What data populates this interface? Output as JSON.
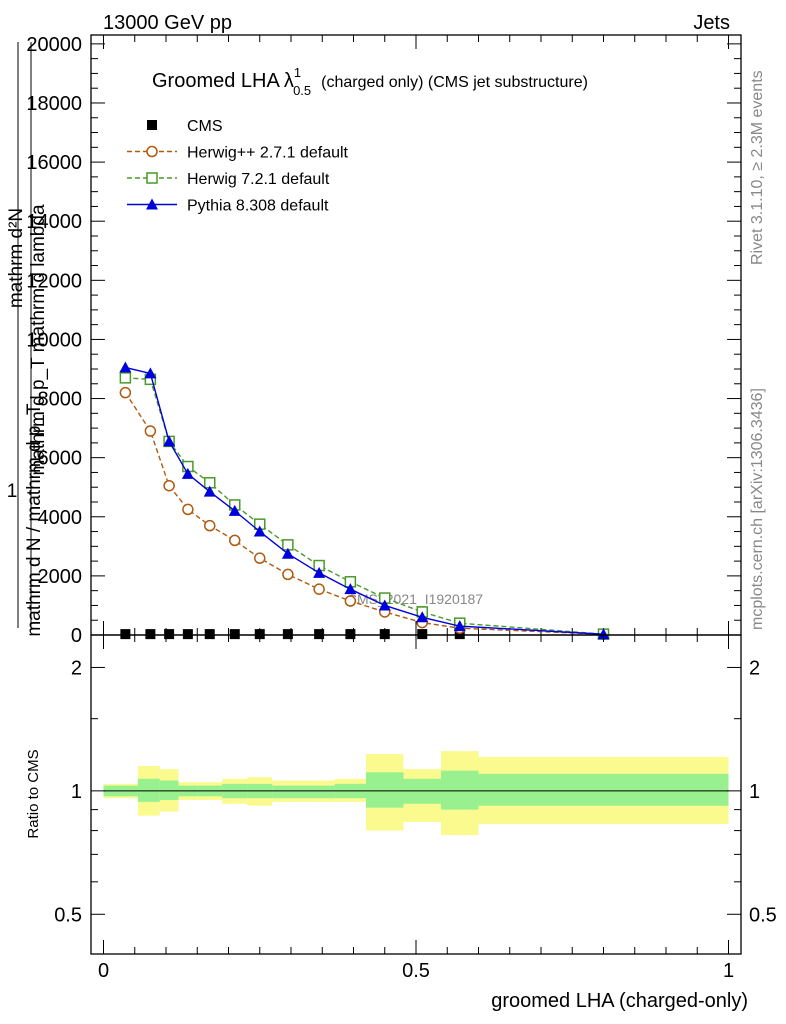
{
  "header": {
    "left": "13000 GeV pp",
    "right": "Jets"
  },
  "side": {
    "rivet": "Rivet 3.1.10, ≥ 2.3M events",
    "mcplots": "mcplots.cern.ch [arXiv:1306.3436]"
  },
  "chart_data": [
    {
      "type": "line",
      "title_main": "Groomed LHA",
      "title_symbol": "λ",
      "title_sup": "1",
      "title_sub": "0.5",
      "title_rest": "(charged only) (CMS jet substructure)",
      "watermark": "CMS_2021_I1920187",
      "ylabel_top": "mathrm d²N",
      "ylabel_one": "1",
      "ylabel_bottom": "mathrm d p_T mathrm d lambda",
      "ylabel_norm": "mathrm d N / mathrm d p_T",
      "xlim": [
        -0.02,
        1.02
      ],
      "ylim": [
        0,
        20300
      ],
      "yticks": [
        0,
        2000,
        4000,
        6000,
        8000,
        10000,
        12000,
        14000,
        16000,
        18000,
        20000
      ],
      "ytick_labels": [
        "0",
        "2000",
        "4000",
        "6000",
        "8000",
        "10000",
        "12000",
        "14000",
        "16000",
        "18000",
        "20000"
      ],
      "x": [
        0.035,
        0.075,
        0.105,
        0.135,
        0.17,
        0.21,
        0.25,
        0.295,
        0.345,
        0.395,
        0.45,
        0.51,
        0.57,
        0.8
      ],
      "series": [
        {
          "name": "CMS",
          "marker": "square-filled",
          "color": "#000000",
          "values": [
            30,
            30,
            30,
            30,
            30,
            30,
            30,
            30,
            30,
            30,
            30,
            30,
            30,
            30
          ]
        },
        {
          "name": "Herwig++ 2.7.1 default",
          "marker": "circle-open",
          "color": "#b05a10",
          "dash": true,
          "values": [
            8200,
            6900,
            5050,
            4250,
            3700,
            3200,
            2600,
            2050,
            1550,
            1150,
            780,
            420,
            230,
            25
          ]
        },
        {
          "name": "Herwig 7.2.1 default",
          "marker": "square-open",
          "color": "#4a9a2a",
          "dash": true,
          "values": [
            8700,
            8650,
            6550,
            5700,
            5150,
            4400,
            3750,
            3050,
            2350,
            1800,
            1250,
            780,
            400,
            30
          ]
        },
        {
          "name": "Pythia 8.308 default",
          "marker": "triangle-filled",
          "color": "#0000dd",
          "dash": false,
          "values": [
            9050,
            8850,
            6550,
            5450,
            4850,
            4200,
            3500,
            2750,
            2100,
            1550,
            1000,
            600,
            300,
            25
          ]
        }
      ]
    },
    {
      "type": "area",
      "ylabel": "Ratio to CMS",
      "xlabel": "groomed LHA (charged-only)",
      "xlim": [
        -0.02,
        1.02
      ],
      "ylim": [
        0.4,
        2.4
      ],
      "log_y": true,
      "yticks": [
        0.5,
        1,
        2
      ],
      "ytick_labels": [
        "0.5",
        "1",
        "2"
      ],
      "xticks": [
        0,
        0.5,
        1
      ],
      "xtick_labels": [
        "0",
        "0.5",
        "1"
      ],
      "bins": [
        0,
        0.055,
        0.09,
        0.12,
        0.15,
        0.19,
        0.23,
        0.27,
        0.32,
        0.37,
        0.42,
        0.48,
        0.54,
        0.6,
        1.0
      ],
      "stat_band": {
        "lo": [
          0.97,
          0.94,
          0.95,
          0.97,
          0.97,
          0.96,
          0.96,
          0.96,
          0.96,
          0.96,
          0.91,
          0.93,
          0.9,
          0.92
        ],
        "hi": [
          1.03,
          1.07,
          1.06,
          1.03,
          1.03,
          1.04,
          1.04,
          1.03,
          1.03,
          1.04,
          1.11,
          1.07,
          1.12,
          1.1
        ]
      },
      "total_band": {
        "lo": [
          0.96,
          0.87,
          0.89,
          0.95,
          0.95,
          0.93,
          0.92,
          0.94,
          0.94,
          0.94,
          0.8,
          0.84,
          0.78,
          0.83
        ],
        "hi": [
          1.04,
          1.15,
          1.13,
          1.05,
          1.05,
          1.07,
          1.08,
          1.06,
          1.06,
          1.07,
          1.23,
          1.13,
          1.25,
          1.21
        ]
      },
      "stat_color": "#99f08f",
      "total_color": "#fafa8f"
    }
  ]
}
